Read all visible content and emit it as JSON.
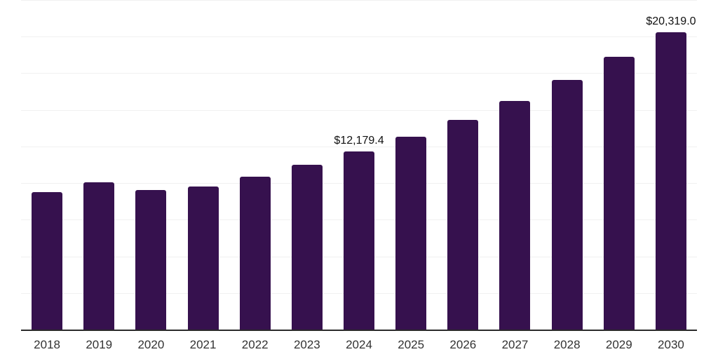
{
  "chart": {
    "bar_color": "#36114E",
    "grid_color": "#F0F0F0",
    "axis_color": "#2B2B2B",
    "tick_label_color": "#333333",
    "data_label_color": "#111111",
    "background_color": "#FFFFFF"
  },
  "chart_data": {
    "type": "bar",
    "title": "",
    "xlabel": "",
    "ylabel": "",
    "categories": [
      "2018",
      "2019",
      "2020",
      "2021",
      "2022",
      "2023",
      "2024",
      "2025",
      "2026",
      "2027",
      "2028",
      "2029",
      "2030"
    ],
    "values": [
      9390,
      10040,
      9550,
      9790,
      10420,
      11270,
      12179.4,
      13170,
      14340,
      15630,
      17030,
      18610,
      20319.0
    ],
    "data_labels": [
      "",
      "",
      "",
      "",
      "",
      "",
      "$12,179.4",
      "",
      "",
      "",
      "",
      "",
      "$20,319.0"
    ],
    "ylim": [
      0,
      22500
    ],
    "gridline_interval": 2500,
    "grid": "horizontal",
    "legend_position": "none",
    "y_axis_ticks_visible": false
  }
}
